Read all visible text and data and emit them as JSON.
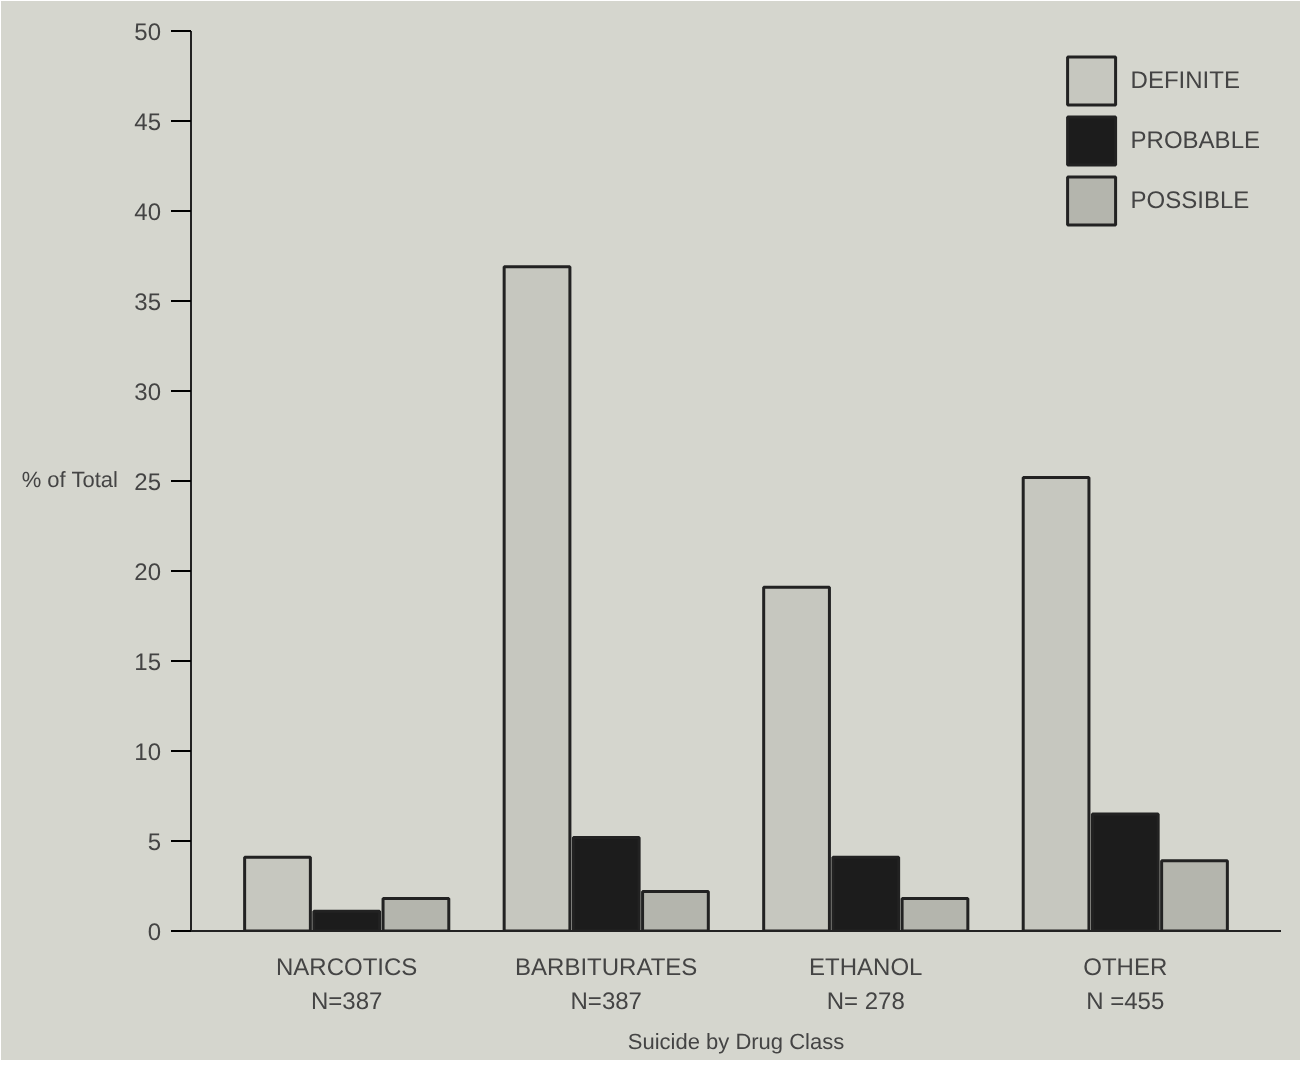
{
  "chart_data": {
    "type": "bar",
    "xlabel": "Suicide by Drug Class",
    "ylabel": "% of Total",
    "categories": [
      "NARCOTICS\nN=387",
      "BARBITURATES\nN=387",
      "ETHANOL\nN= 278",
      "OTHER\nN =455"
    ],
    "series": [
      {
        "name": "DEFINITE",
        "color": "#c6c7bf",
        "values": [
          4.1,
          36.9,
          19.1,
          25.2
        ]
      },
      {
        "name": "PROBABLE",
        "color": "#1c1c1c",
        "values": [
          1.1,
          5.2,
          4.1,
          6.5
        ]
      },
      {
        "name": "POSSIBLE",
        "color": "#b4b5ad",
        "values": [
          1.8,
          2.2,
          1.8,
          3.9
        ]
      }
    ],
    "ylim": [
      0,
      50
    ],
    "yticks": [
      0,
      5,
      10,
      15,
      20,
      25,
      30,
      35,
      40,
      45,
      50
    ],
    "grid": false,
    "legend": "top right"
  }
}
